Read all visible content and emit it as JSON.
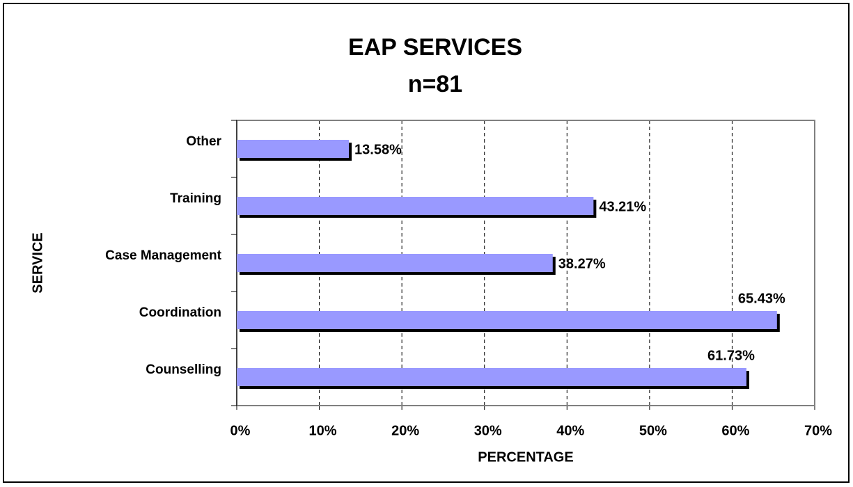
{
  "chart_data": {
    "type": "barh",
    "title": "EAP SERVICES",
    "subtitle": "n=81",
    "x_label": "PERCENTAGE",
    "y_label": "SERVICE",
    "categories": [
      "Other",
      "Training",
      "Case Management",
      "Coordination",
      "Counselling"
    ],
    "values": [
      13.58,
      43.21,
      38.27,
      65.43,
      61.73
    ],
    "value_labels": [
      "13.58%",
      "43.21%",
      "38.27%",
      "65.43%",
      "61.73%"
    ],
    "color": "#9999ff",
    "shadow_color": "#000000",
    "xlim": [
      0,
      70
    ],
    "xticks": [
      {
        "value": 0,
        "label": "0%"
      },
      {
        "value": 10,
        "label": "10%"
      },
      {
        "value": 20,
        "label": "20%"
      },
      {
        "value": 30,
        "label": "30%"
      },
      {
        "value": 40,
        "label": "40%"
      },
      {
        "value": 50,
        "label": "50%"
      },
      {
        "value": 60,
        "label": "60%"
      },
      {
        "value": 70,
        "label": "70%"
      }
    ],
    "grid": true
  }
}
